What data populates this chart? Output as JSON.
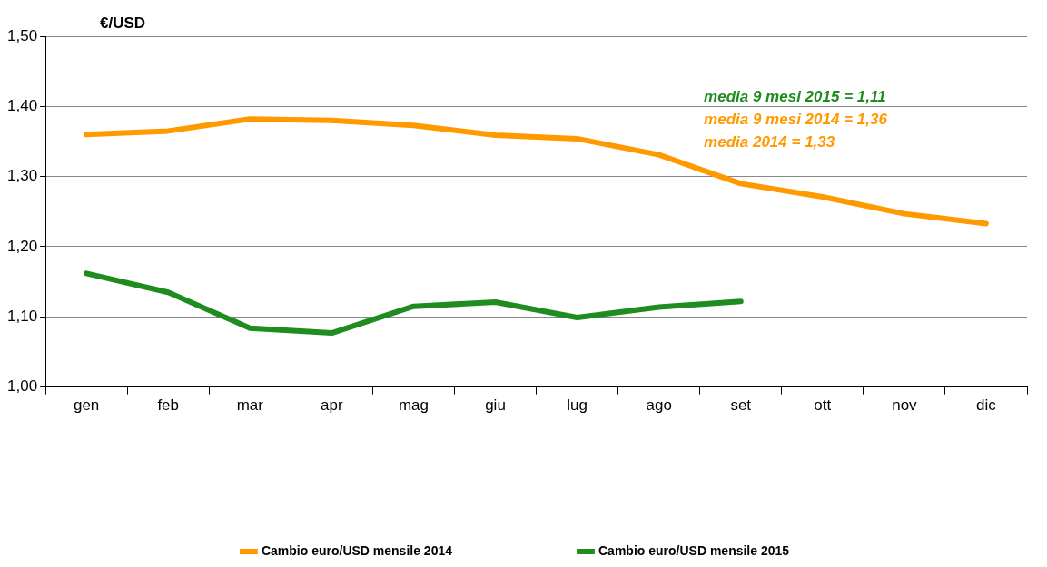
{
  "chart_data": {
    "type": "line",
    "ylabel": "€/USD",
    "categories": [
      "gen",
      "feb",
      "mar",
      "apr",
      "mag",
      "giu",
      "lug",
      "ago",
      "set",
      "ott",
      "nov",
      "dic"
    ],
    "series": [
      {
        "name": "Cambio euro/USD mensile 2014",
        "color": "#ff9900",
        "values": [
          1.36,
          1.365,
          1.382,
          1.38,
          1.373,
          1.359,
          1.354,
          1.331,
          1.29,
          1.271,
          1.247,
          1.233
        ]
      },
      {
        "name": "Cambio euro/USD mensile 2015",
        "color": "#1e8c1e",
        "values": [
          1.162,
          1.135,
          1.084,
          1.077,
          1.115,
          1.121,
          1.099,
          1.114,
          1.122,
          null,
          null,
          null
        ]
      }
    ],
    "ylim": [
      1.0,
      1.5
    ],
    "yticks": [
      {
        "value": 1.0,
        "label": "1,00"
      },
      {
        "value": 1.1,
        "label": "1,10"
      },
      {
        "value": 1.2,
        "label": "1,20"
      },
      {
        "value": 1.3,
        "label": "1,30"
      },
      {
        "value": 1.4,
        "label": "1,40"
      },
      {
        "value": 1.5,
        "label": "1,50"
      }
    ],
    "grid": "y",
    "legend": "bottom",
    "marker": "none",
    "line_style": "solid",
    "annotations": [
      "media 9 mesi 2015 = 1,11",
      "media 9 mesi 2014 = 1,36",
      "media 2014 = 1,33"
    ]
  }
}
